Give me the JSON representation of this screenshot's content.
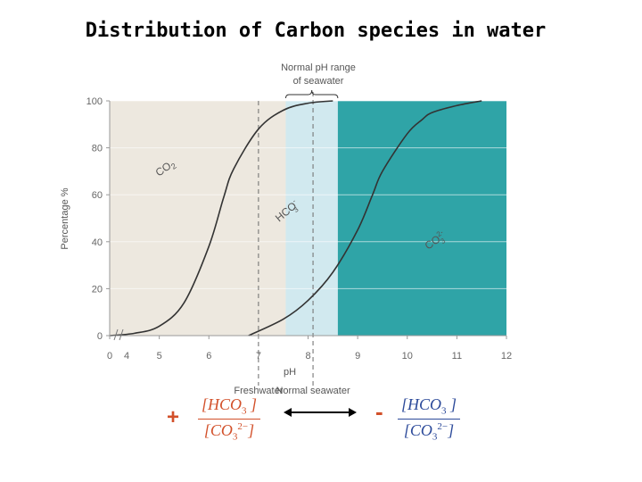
{
  "title": "Distribution of Carbon species in water",
  "chart_data": {
    "type": "line",
    "xlabel": "pH",
    "ylabel": "Percentage %",
    "xlim": [
      4,
      12
    ],
    "ylim": [
      0,
      100
    ],
    "x_ticks": [
      {
        "value": 4,
        "label": "4"
      },
      {
        "value": 5,
        "label": "5"
      },
      {
        "value": 6,
        "label": "6"
      },
      {
        "value": 7,
        "label": "7"
      },
      {
        "value": 8,
        "label": "8"
      },
      {
        "value": 9,
        "label": "9"
      },
      {
        "value": 10,
        "label": "10"
      },
      {
        "value": 11,
        "label": "11"
      },
      {
        "value": 12,
        "label": "12"
      }
    ],
    "x_origin_label": "0",
    "y_ticks": [
      0,
      20,
      40,
      60,
      80,
      100
    ],
    "series": [
      {
        "name": "CO2",
        "x": [
          4.0,
          4.5,
          5.0,
          5.5,
          6.0,
          6.3,
          6.5,
          7.0,
          7.5,
          8.0,
          8.5
        ],
        "y": [
          0,
          1,
          4,
          14,
          38,
          59,
          71,
          88,
          96,
          99,
          100
        ]
      },
      {
        "name": "HCO3-",
        "x": [
          6.8,
          7.5,
          8.0,
          8.5,
          9.0,
          9.3,
          9.5,
          10.0,
          10.3,
          10.5,
          11.0,
          11.5
        ],
        "y": [
          0,
          7,
          15,
          27,
          45,
          60,
          70,
          86,
          92,
          95,
          98,
          100
        ]
      }
    ],
    "curve_labels": [
      {
        "text": "CO",
        "sub": "2",
        "series": "CO2"
      },
      {
        "text": "HCO",
        "sub": "3",
        "sup": "-",
        "series": "HCO3-"
      },
      {
        "text": "CO",
        "sub": "3",
        "sup": "2-"
      }
    ],
    "regions": [
      {
        "from": 4,
        "to": 7.55,
        "color": "#ede8df"
      },
      {
        "from": 7.55,
        "to": 8.6,
        "color": "#d1e9ef"
      },
      {
        "from": 8.6,
        "to": 12,
        "color": "#2fa4a7"
      }
    ],
    "reference_lines": [
      {
        "x": 7,
        "label": "Freshwater"
      },
      {
        "x": 8.1,
        "label": "Normal seawater"
      }
    ],
    "top_annotation": {
      "line1": "Normal pH range",
      "line2": "of seawater",
      "from": 7.55,
      "to": 8.6
    }
  },
  "equilibrium": {
    "left_sign": "+",
    "right_sign": "-",
    "numerator": "HCO",
    "numerator_sub": "3",
    "denominator": "CO",
    "denominator_sub": "3",
    "denominator_sup": "2−",
    "colors": {
      "left": "#d2502a",
      "right": "#2c4a9a",
      "arrow": "#000000"
    }
  }
}
